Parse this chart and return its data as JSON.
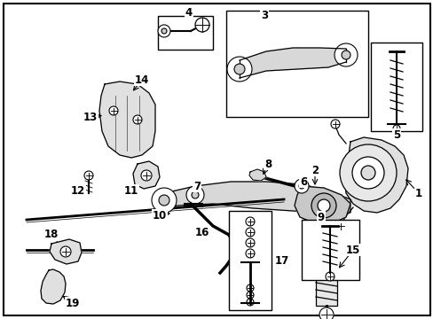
{
  "background_color": "#ffffff",
  "border_color": "#000000",
  "figsize": [
    4.89,
    3.6
  ],
  "dpi": 100,
  "label_fontsize": 8.5
}
